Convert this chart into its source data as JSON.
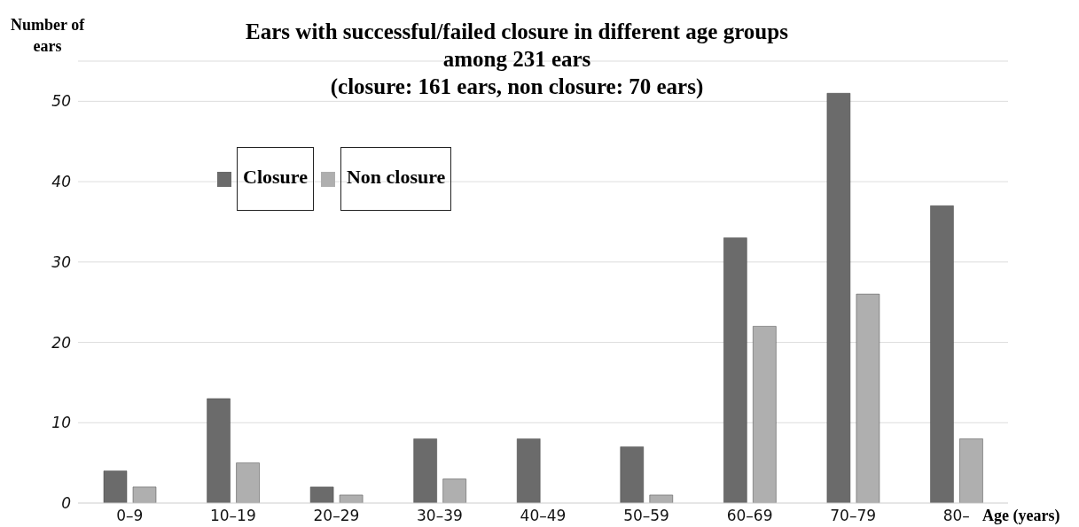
{
  "chart_data": {
    "type": "bar",
    "title": "Ears with successful/failed closure in different age groups\namong 231 ears\n(closure: 161 ears, non closure: 70 ears)",
    "ylabel": "Number of\nears",
    "xlabel": "Age (years)",
    "categories": [
      "0–9",
      "10–19",
      "20–29",
      "30–39",
      "40–49",
      "50–59",
      "60–69",
      "70–79",
      "80–"
    ],
    "series": [
      {
        "name": "Closure",
        "color": "#6b6b6b",
        "values": [
          4,
          13,
          2,
          8,
          8,
          7,
          33,
          51,
          37
        ]
      },
      {
        "name": "Non closure",
        "color": "#afafaf",
        "values": [
          2,
          5,
          1,
          3,
          0,
          1,
          22,
          26,
          8
        ]
      }
    ],
    "ylim": [
      0,
      55
    ],
    "yticks": [
      0,
      10,
      20,
      30,
      40,
      50
    ],
    "grid": "y",
    "legend": "top left"
  }
}
